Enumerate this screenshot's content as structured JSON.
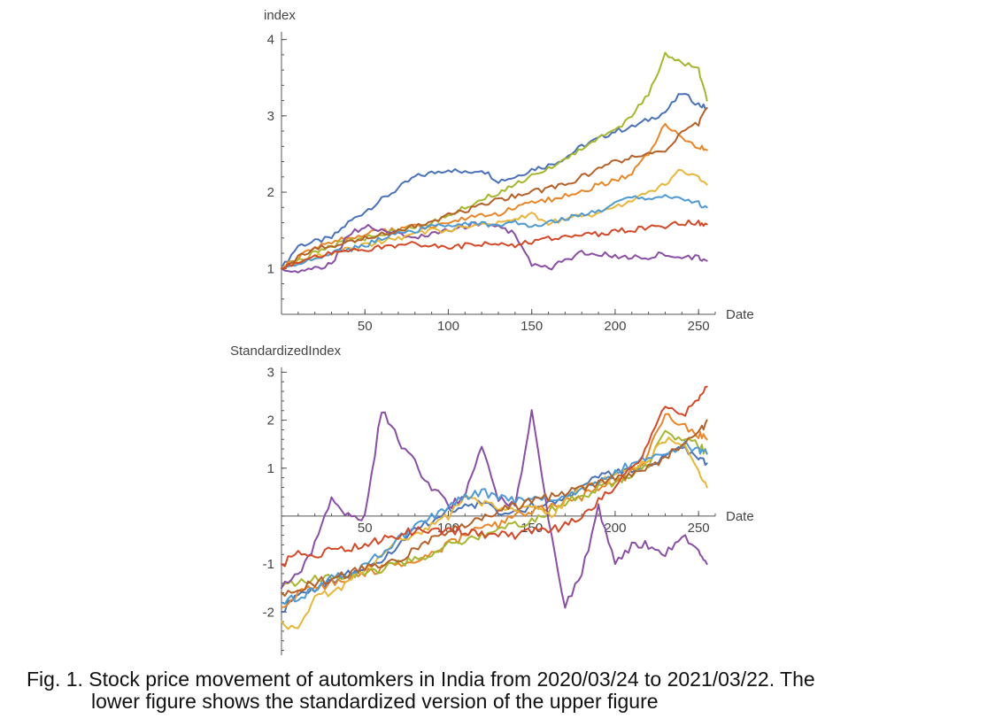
{
  "colors": [
    "#4b72b8",
    "#e8862a",
    "#a7b62f",
    "#8a4fa3",
    "#e8b63a",
    "#4f9bd1",
    "#b5612a",
    "#d24a2a"
  ],
  "caption": {
    "line1": "Fig. 1. Stock price movement of automkers in India from 2020/03/24 to 2021/03/22. The",
    "line2": "lower figure shows the standardized version of the upper figure"
  },
  "chart_data": [
    {
      "type": "line",
      "title": "",
      "xlabel": "Date",
      "ylabel": "index",
      "xlim": [
        0,
        260
      ],
      "ylim": [
        0.4,
        4.1
      ],
      "xticks": [
        50,
        100,
        150,
        200,
        250
      ],
      "yticks": [
        1,
        2,
        3,
        4
      ],
      "grid": false,
      "n_series": 8,
      "series": [
        {
          "x": [
            0,
            10,
            20,
            30,
            40,
            50,
            60,
            70,
            80,
            90,
            100,
            110,
            120,
            130,
            140,
            150,
            160,
            170,
            180,
            190,
            200,
            210,
            220,
            230,
            240,
            250,
            255
          ],
          "values": [
            1.0,
            1.3,
            1.35,
            1.4,
            1.6,
            1.75,
            1.9,
            2.05,
            2.2,
            2.25,
            2.3,
            2.25,
            2.3,
            2.15,
            2.2,
            2.3,
            2.35,
            2.45,
            2.6,
            2.7,
            2.8,
            2.85,
            2.95,
            3.05,
            3.3,
            3.15,
            3.1
          ]
        },
        {
          "x": [
            0,
            10,
            20,
            30,
            40,
            50,
            60,
            70,
            80,
            90,
            100,
            110,
            120,
            130,
            140,
            150,
            160,
            170,
            180,
            190,
            200,
            210,
            220,
            230,
            240,
            250,
            255
          ],
          "values": [
            1.0,
            1.15,
            1.25,
            1.35,
            1.4,
            1.45,
            1.5,
            1.5,
            1.55,
            1.55,
            1.6,
            1.65,
            1.7,
            1.7,
            1.8,
            1.85,
            1.9,
            1.95,
            2.0,
            2.1,
            2.15,
            2.25,
            2.5,
            2.9,
            2.7,
            2.6,
            2.55
          ]
        },
        {
          "x": [
            0,
            10,
            20,
            30,
            40,
            50,
            60,
            70,
            80,
            90,
            100,
            110,
            120,
            130,
            140,
            150,
            160,
            170,
            180,
            190,
            200,
            210,
            220,
            230,
            240,
            250,
            255
          ],
          "values": [
            1.0,
            1.1,
            1.2,
            1.3,
            1.35,
            1.4,
            1.45,
            1.5,
            1.55,
            1.6,
            1.7,
            1.8,
            1.9,
            2.0,
            2.1,
            2.2,
            2.3,
            2.45,
            2.55,
            2.7,
            2.8,
            3.0,
            3.3,
            3.8,
            3.7,
            3.6,
            3.2
          ]
        },
        {
          "x": [
            0,
            10,
            20,
            30,
            40,
            50,
            60,
            70,
            80,
            90,
            100,
            110,
            120,
            130,
            140,
            150,
            160,
            170,
            180,
            190,
            200,
            210,
            220,
            230,
            240,
            250,
            255
          ],
          "values": [
            1.0,
            0.95,
            1.0,
            1.05,
            1.45,
            1.55,
            1.5,
            1.45,
            1.4,
            1.45,
            1.5,
            1.55,
            1.6,
            1.55,
            1.45,
            1.05,
            1.0,
            1.1,
            1.2,
            1.2,
            1.15,
            1.15,
            1.15,
            1.2,
            1.15,
            1.15,
            1.1
          ]
        },
        {
          "x": [
            0,
            10,
            20,
            30,
            40,
            50,
            60,
            70,
            80,
            90,
            100,
            110,
            120,
            130,
            140,
            150,
            160,
            170,
            180,
            190,
            200,
            210,
            220,
            230,
            240,
            250,
            255
          ],
          "values": [
            1.0,
            1.1,
            1.15,
            1.2,
            1.25,
            1.3,
            1.35,
            1.4,
            1.45,
            1.5,
            1.5,
            1.55,
            1.6,
            1.6,
            1.65,
            1.7,
            1.6,
            1.65,
            1.7,
            1.7,
            1.8,
            1.9,
            2.0,
            2.1,
            2.3,
            2.2,
            2.1
          ]
        },
        {
          "x": [
            0,
            10,
            20,
            30,
            40,
            50,
            60,
            70,
            80,
            90,
            100,
            110,
            120,
            130,
            140,
            150,
            160,
            170,
            180,
            190,
            200,
            210,
            220,
            230,
            240,
            250,
            255
          ],
          "values": [
            1.0,
            1.05,
            1.15,
            1.2,
            1.25,
            1.3,
            1.4,
            1.45,
            1.5,
            1.55,
            1.55,
            1.6,
            1.6,
            1.55,
            1.6,
            1.55,
            1.6,
            1.65,
            1.7,
            1.75,
            1.85,
            1.95,
            1.9,
            1.95,
            1.9,
            1.85,
            1.8
          ]
        },
        {
          "x": [
            0,
            10,
            20,
            30,
            40,
            50,
            60,
            70,
            80,
            90,
            100,
            110,
            120,
            130,
            140,
            150,
            160,
            170,
            180,
            190,
            200,
            210,
            220,
            230,
            240,
            250,
            255
          ],
          "values": [
            1.0,
            1.15,
            1.25,
            1.3,
            1.35,
            1.4,
            1.45,
            1.5,
            1.55,
            1.6,
            1.7,
            1.75,
            1.85,
            1.9,
            1.95,
            2.0,
            2.05,
            2.1,
            2.2,
            2.3,
            2.4,
            2.45,
            2.5,
            2.55,
            2.8,
            2.9,
            3.1
          ]
        },
        {
          "x": [
            0,
            10,
            20,
            30,
            40,
            50,
            60,
            70,
            80,
            90,
            100,
            110,
            120,
            130,
            140,
            150,
            160,
            170,
            180,
            190,
            200,
            210,
            220,
            230,
            240,
            250,
            255
          ],
          "values": [
            1.0,
            1.1,
            1.15,
            1.2,
            1.22,
            1.25,
            1.28,
            1.3,
            1.32,
            1.3,
            1.28,
            1.3,
            1.32,
            1.3,
            1.3,
            1.35,
            1.4,
            1.4,
            1.45,
            1.45,
            1.5,
            1.5,
            1.55,
            1.55,
            1.6,
            1.6,
            1.58
          ]
        }
      ]
    },
    {
      "type": "line",
      "title": "",
      "xlabel": "Date",
      "ylabel": "StandardizedIndex",
      "xlim": [
        0,
        260
      ],
      "ylim": [
        -2.9,
        3.1
      ],
      "xticks": [
        50,
        100,
        150,
        200,
        250
      ],
      "yticks": [
        -2,
        -1,
        1,
        2,
        3
      ],
      "grid": false,
      "n_series": 8,
      "series": [
        {
          "x": [
            0,
            10,
            20,
            30,
            40,
            50,
            60,
            70,
            80,
            90,
            100,
            110,
            120,
            130,
            140,
            150,
            160,
            170,
            180,
            190,
            200,
            210,
            220,
            230,
            240,
            250,
            255
          ],
          "values": [
            -2.0,
            -1.6,
            -1.5,
            -1.4,
            -1.2,
            -1.1,
            -0.9,
            -0.6,
            -0.3,
            -0.1,
            0.1,
            0.2,
            0.25,
            0.1,
            0.1,
            0.2,
            0.3,
            0.4,
            0.6,
            0.8,
            0.9,
            1.0,
            1.1,
            1.2,
            1.4,
            1.2,
            1.1
          ]
        },
        {
          "x": [
            0,
            10,
            20,
            30,
            40,
            50,
            60,
            70,
            80,
            90,
            100,
            110,
            120,
            130,
            140,
            150,
            160,
            170,
            180,
            190,
            200,
            210,
            220,
            230,
            240,
            250,
            255
          ],
          "values": [
            -1.9,
            -1.6,
            -1.5,
            -1.4,
            -1.3,
            -1.2,
            -1.1,
            -1.0,
            -0.9,
            -0.8,
            -0.6,
            -0.4,
            -0.2,
            -0.2,
            0.0,
            0.1,
            0.2,
            0.3,
            0.4,
            0.6,
            0.7,
            0.9,
            1.3,
            2.2,
            1.9,
            1.7,
            1.6
          ]
        },
        {
          "x": [
            0,
            10,
            20,
            30,
            40,
            50,
            60,
            70,
            80,
            90,
            100,
            110,
            120,
            130,
            140,
            150,
            160,
            170,
            180,
            190,
            200,
            210,
            220,
            230,
            240,
            250,
            255
          ],
          "values": [
            -1.5,
            -1.4,
            -1.3,
            -1.3,
            -1.2,
            -1.2,
            -1.1,
            -1.0,
            -0.9,
            -0.8,
            -0.6,
            -0.5,
            -0.4,
            -0.3,
            -0.2,
            -0.1,
            0.1,
            0.3,
            0.4,
            0.6,
            0.7,
            0.9,
            1.1,
            1.8,
            1.6,
            1.5,
            1.3
          ]
        },
        {
          "x": [
            0,
            10,
            20,
            30,
            40,
            50,
            60,
            70,
            80,
            90,
            100,
            110,
            120,
            130,
            140,
            150,
            160,
            170,
            180,
            190,
            200,
            210,
            220,
            230,
            240,
            250,
            255
          ],
          "values": [
            -1.5,
            -1.2,
            -0.6,
            0.4,
            0.0,
            0.0,
            2.2,
            1.6,
            1.1,
            0.6,
            0.2,
            0.4,
            1.5,
            0.4,
            0.2,
            2.2,
            0.0,
            -1.9,
            -1.2,
            0.2,
            -1.0,
            -0.6,
            -0.6,
            -0.8,
            -0.4,
            -0.7,
            -1.0
          ]
        },
        {
          "x": [
            0,
            10,
            20,
            30,
            40,
            50,
            60,
            70,
            80,
            90,
            100,
            110,
            120,
            130,
            140,
            150,
            160,
            170,
            180,
            190,
            200,
            210,
            220,
            230,
            240,
            250,
            255
          ],
          "values": [
            -2.2,
            -2.4,
            -1.6,
            -1.6,
            -1.4,
            -1.1,
            -0.8,
            -0.5,
            -0.4,
            -0.2,
            0.0,
            0.4,
            0.3,
            0.2,
            0.1,
            0.2,
            0.0,
            0.3,
            0.6,
            0.7,
            0.8,
            1.0,
            1.2,
            1.6,
            1.5,
            1.0,
            0.6
          ]
        },
        {
          "x": [
            0,
            10,
            20,
            30,
            40,
            50,
            60,
            70,
            80,
            90,
            100,
            110,
            120,
            130,
            140,
            150,
            160,
            170,
            180,
            190,
            200,
            210,
            220,
            230,
            240,
            250,
            255
          ],
          "values": [
            -1.8,
            -1.7,
            -1.5,
            -1.3,
            -1.2,
            -1.0,
            -0.8,
            -0.5,
            -0.2,
            0.0,
            0.2,
            0.4,
            0.5,
            0.4,
            0.3,
            0.4,
            0.3,
            0.4,
            0.6,
            0.7,
            0.9,
            1.1,
            1.2,
            1.3,
            1.5,
            1.4,
            1.3
          ]
        },
        {
          "x": [
            0,
            10,
            20,
            30,
            40,
            50,
            60,
            70,
            80,
            90,
            100,
            110,
            120,
            130,
            140,
            150,
            160,
            170,
            180,
            190,
            200,
            210,
            220,
            230,
            240,
            250,
            255
          ],
          "values": [
            -1.6,
            -1.5,
            -1.4,
            -1.3,
            -1.2,
            -1.1,
            -1.0,
            -0.9,
            -0.7,
            -0.5,
            -0.3,
            -0.2,
            0.0,
            0.1,
            0.2,
            0.3,
            0.4,
            0.5,
            0.6,
            0.7,
            0.8,
            0.9,
            1.0,
            1.2,
            1.5,
            1.7,
            2.0
          ]
        },
        {
          "x": [
            0,
            10,
            20,
            30,
            40,
            50,
            60,
            70,
            80,
            90,
            100,
            110,
            120,
            130,
            140,
            150,
            160,
            170,
            180,
            190,
            200,
            210,
            220,
            230,
            240,
            250,
            255
          ],
          "values": [
            -1.0,
            -0.8,
            -0.8,
            -0.7,
            -0.7,
            -0.6,
            -0.5,
            -0.4,
            -0.3,
            -0.3,
            -0.3,
            -0.3,
            -0.4,
            -0.4,
            -0.4,
            -0.3,
            -0.3,
            -0.2,
            0.0,
            0.3,
            0.6,
            1.0,
            1.5,
            2.3,
            2.1,
            2.4,
            2.7
          ]
        }
      ]
    }
  ]
}
